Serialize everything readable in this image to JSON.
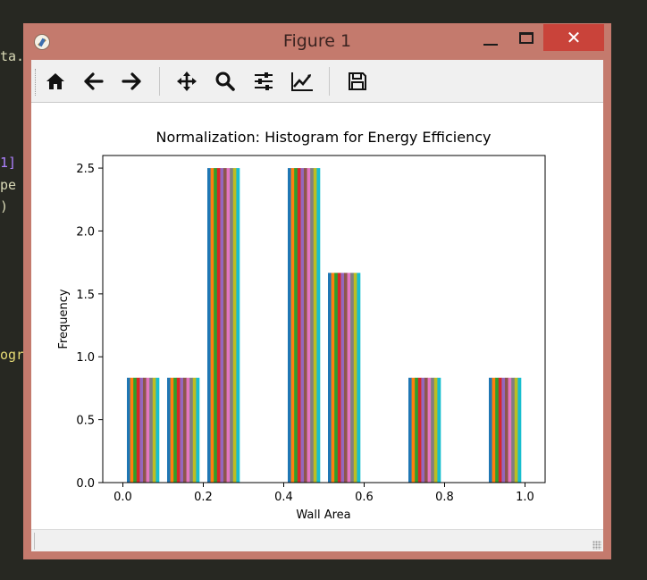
{
  "window": {
    "title": "Figure 1",
    "close_glyph": "✕",
    "icons": [
      "matplotlib-icon",
      "minimize-icon",
      "maximize-icon",
      "close-icon"
    ]
  },
  "background_code": [
    "ta.",
    "1]",
    "pe",
    ")",
    "ogr"
  ],
  "toolbar": {
    "buttons": [
      "home-icon",
      "back-arrow-icon",
      "forward-arrow-icon",
      "pan-icon",
      "zoom-icon",
      "configure-subplots-icon",
      "edit-axes-icon",
      "save-icon"
    ]
  },
  "chart_data": {
    "type": "bar",
    "title": "Normalization: Histogram for Energy Efficiency",
    "xlabel": "Wall Area",
    "ylabel": "Frequency",
    "xlim": [
      -0.05,
      1.05
    ],
    "ylim": [
      0,
      2.6
    ],
    "xticks": [
      "0.0",
      "0.2",
      "0.4",
      "0.6",
      "0.8",
      "1.0"
    ],
    "yticks": [
      "0.0",
      "0.5",
      "1.0",
      "1.5",
      "2.0",
      "2.5"
    ],
    "bin_edges": [
      0.0,
      0.1,
      0.2,
      0.3,
      0.4,
      0.5,
      0.6,
      0.7,
      0.8,
      0.9,
      1.0
    ],
    "series_count": 10,
    "series_colors": [
      "#1f77b4",
      "#ff7f0e",
      "#2ca02c",
      "#d62728",
      "#9467bd",
      "#8c564b",
      "#e377c2",
      "#7f7f7f",
      "#bcbd22",
      "#17becf"
    ],
    "values": [
      0.833,
      0.833,
      2.5,
      0,
      2.5,
      1.667,
      0,
      0.833,
      0,
      0.833
    ],
    "grid": false
  }
}
